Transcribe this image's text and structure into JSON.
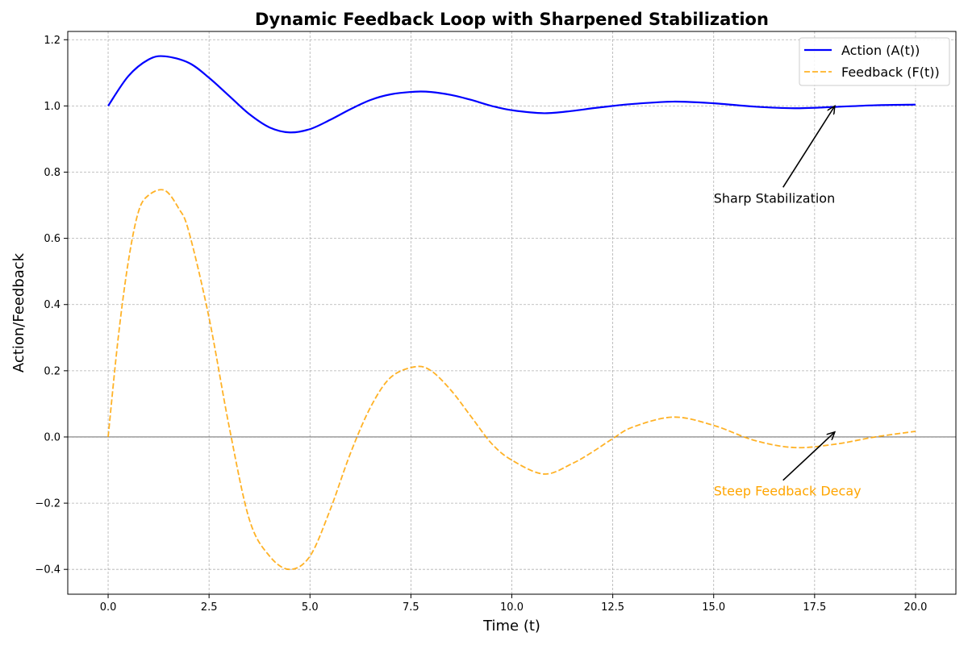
{
  "chart_data": {
    "type": "line",
    "title": "Dynamic Feedback Loop with Sharpened Stabilization",
    "xlabel": "Time (t)",
    "ylabel": "Action/Feedback",
    "xlim": [
      -1.0,
      21.0
    ],
    "ylim": [
      -0.475,
      1.225
    ],
    "xticks": [
      0.0,
      2.5,
      5.0,
      7.5,
      10.0,
      12.5,
      15.0,
      17.5,
      20.0
    ],
    "xtick_labels": [
      "0.0",
      "2.5",
      "5.0",
      "7.5",
      "10.0",
      "12.5",
      "15.0",
      "17.5",
      "20.0"
    ],
    "yticks": [
      -0.4,
      -0.2,
      0.0,
      0.2,
      0.4,
      0.6,
      0.8,
      1.0,
      1.2
    ],
    "ytick_labels": [
      "−0.4",
      "−0.2",
      "0.0",
      "0.2",
      "0.4",
      "0.6",
      "0.8",
      "1.0",
      "1.2"
    ],
    "grid": true,
    "legend_position": "top-right",
    "zero_line": true,
    "series": [
      {
        "name": "Action (A(t))",
        "color": "#0000ff",
        "style": "solid",
        "x": [
          0,
          0.5,
          1.0,
          1.4,
          2.0,
          2.5,
          3.0,
          3.5,
          4.0,
          4.5,
          5.0,
          5.5,
          6.0,
          6.5,
          7.0,
          7.6,
          8.0,
          8.5,
          9.0,
          9.5,
          10.0,
          10.8,
          11.5,
          12.0,
          12.5,
          13.0,
          14.0,
          15.0,
          16.0,
          17.0,
          18.0,
          19.0,
          20.0
        ],
        "y": [
          1.0,
          1.09,
          1.14,
          1.15,
          1.13,
          1.085,
          1.03,
          0.975,
          0.935,
          0.92,
          0.93,
          0.958,
          0.99,
          1.018,
          1.035,
          1.043,
          1.042,
          1.033,
          1.018,
          1.0,
          0.987,
          0.978,
          0.985,
          0.993,
          1.0,
          1.006,
          1.013,
          1.008,
          0.998,
          0.993,
          0.997,
          1.002,
          1.004
        ]
      },
      {
        "name": "Feedback (F(t))",
        "color": "#ffa500",
        "style": "dashed",
        "x": [
          0,
          0.25,
          0.5,
          0.75,
          1.0,
          1.4,
          1.75,
          2.0,
          2.5,
          3.0,
          3.5,
          4.0,
          4.5,
          5.0,
          5.5,
          6.0,
          6.5,
          7.0,
          7.6,
          8.0,
          8.5,
          9.0,
          9.5,
          10.0,
          10.8,
          11.5,
          12.0,
          12.5,
          13.0,
          14.0,
          15.0,
          16.0,
          17.0,
          18.0,
          19.0,
          20.0
        ],
        "y": [
          0.0,
          0.3,
          0.53,
          0.68,
          0.73,
          0.745,
          0.69,
          0.62,
          0.36,
          0.03,
          -0.25,
          -0.36,
          -0.4,
          -0.36,
          -0.22,
          -0.05,
          0.09,
          0.18,
          0.212,
          0.2,
          0.14,
          0.06,
          -0.02,
          -0.07,
          -0.112,
          -0.08,
          -0.045,
          -0.005,
          0.03,
          0.06,
          0.035,
          -0.01,
          -0.032,
          -0.022,
          0.0,
          0.017
        ]
      }
    ],
    "annotations": [
      {
        "text": "Sharp Stabilization",
        "xy": [
          18.0,
          1.0
        ],
        "text_xy": [
          15.0,
          0.72
        ],
        "color": "#000000"
      },
      {
        "text": "Steep Feedback Decay",
        "xy": [
          18.0,
          0.015
        ],
        "text_xy": [
          15.0,
          -0.165
        ],
        "color": "#ffa500"
      }
    ]
  }
}
